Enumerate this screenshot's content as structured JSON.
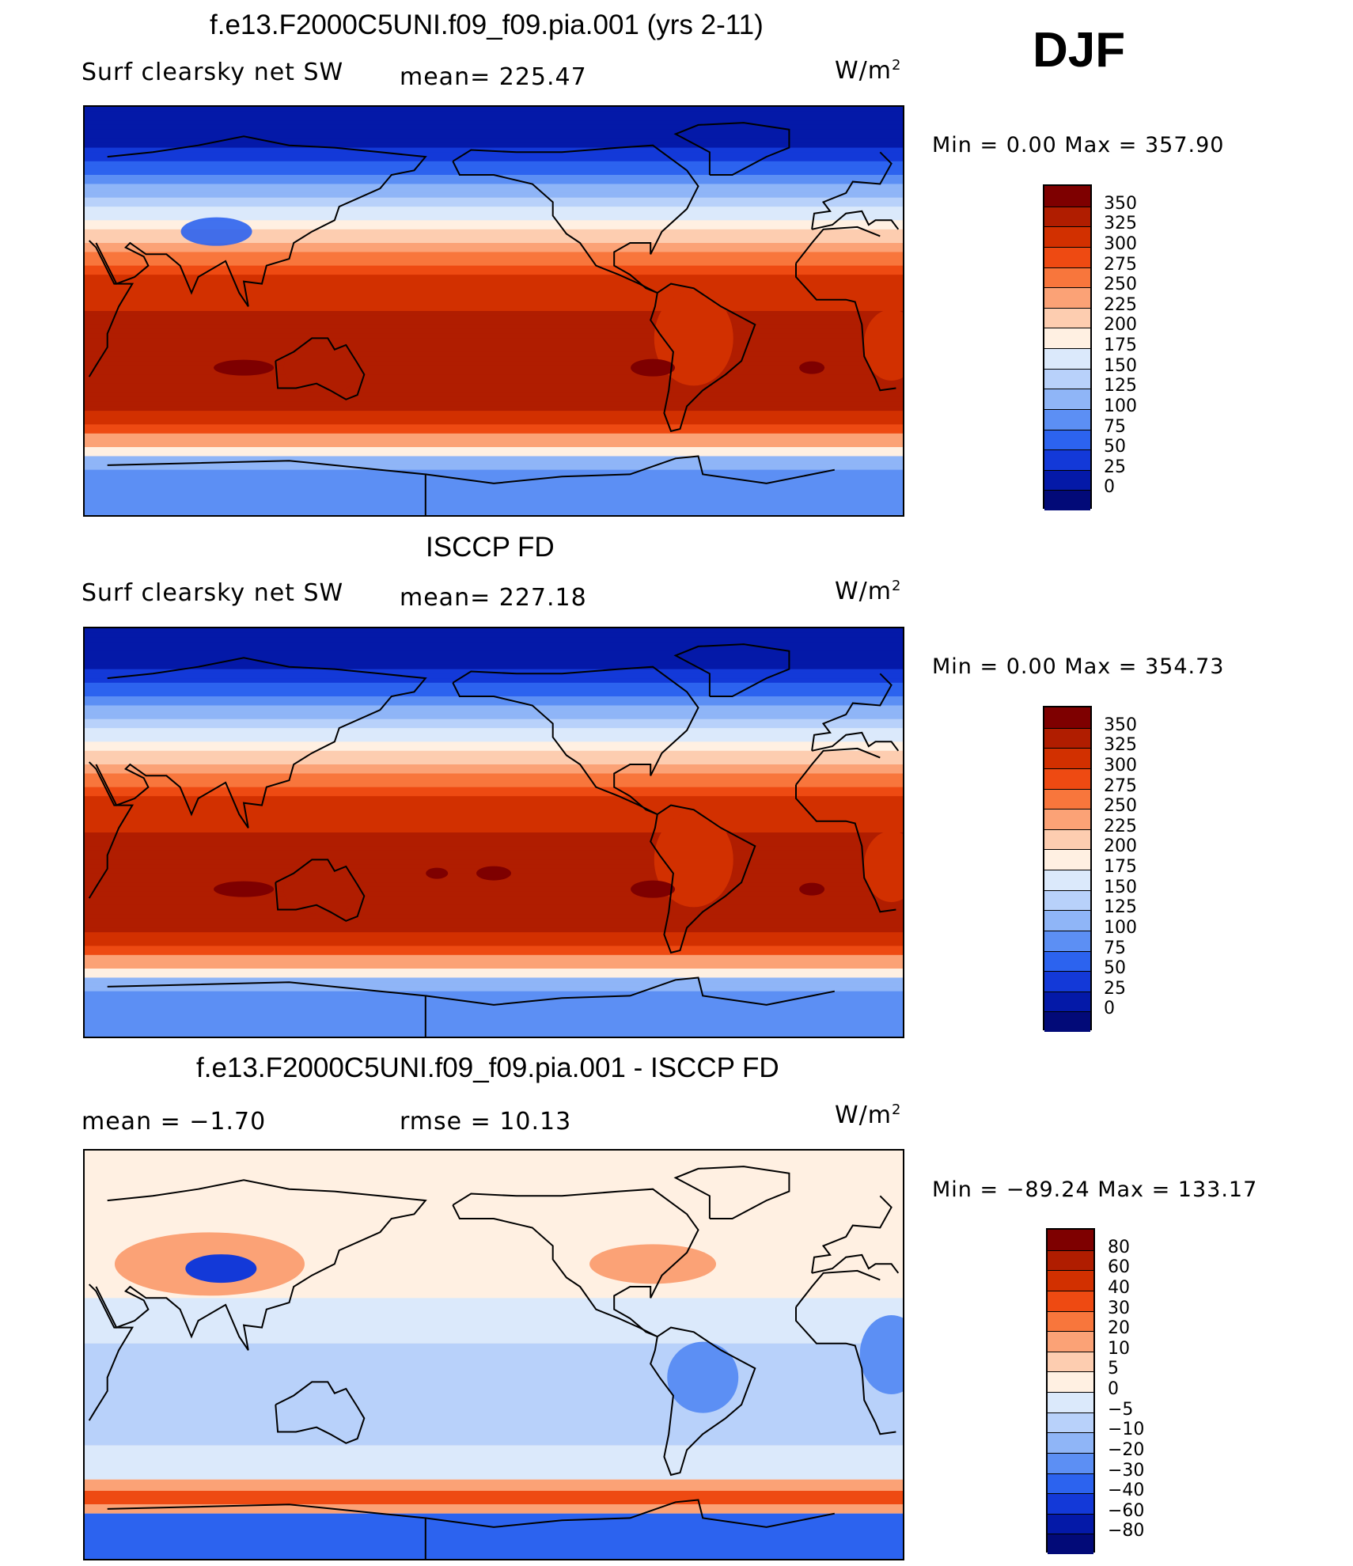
{
  "season": "DJF",
  "units_base": "W/m",
  "units_exp": "2",
  "panels": [
    {
      "title": "f.e13.F2000C5UNI.f09_f09.pia.001 (yrs 2-11)",
      "left_label": "Surf clearsky net SW",
      "mid_label": "mean= 225.47",
      "minmax": "Min =    0.00 Max = 357.90",
      "kind": "model"
    },
    {
      "title": "ISCCP FD",
      "left_label": "Surf clearsky net SW",
      "mid_label": "mean= 227.18",
      "minmax": "Min =    0.00 Max = 354.73",
      "kind": "obs"
    },
    {
      "title": "f.e13.F2000C5UNI.f09_f09.pia.001 - ISCCP FD",
      "left_label": "mean =   −1.70",
      "mid_label": "rmse =   10.13",
      "minmax": "Min = −89.24 Max = 133.17",
      "kind": "diff"
    }
  ],
  "chart_data": [
    {
      "type": "heatmap",
      "title": "f.e13.F2000C5UNI.f09_f09.pia.001 (yrs 2-11)",
      "variable": "Surf clearsky net SW",
      "units": "W/m2",
      "mean": 225.47,
      "min": 0.0,
      "max": 357.9,
      "colorbar_levels": [
        "350",
        "325",
        "300",
        "275",
        "250",
        "225",
        "200",
        "175",
        "150",
        "125",
        "100",
        "75",
        "50",
        "25",
        "0"
      ],
      "colorbar_colors": [
        "#7e0000",
        "#b01d00",
        "#d23000",
        "#ee4a12",
        "#f8763c",
        "#fba276",
        "#fdcdb0",
        "#fff0e2",
        "#dbe9fb",
        "#b8d1fa",
        "#8fb5f7",
        "#5c8ff4",
        "#2c63ef",
        "#1339d8",
        "#0419a8",
        "#020a78"
      ]
    },
    {
      "type": "heatmap",
      "title": "ISCCP FD",
      "variable": "Surf clearsky net SW",
      "units": "W/m2",
      "mean": 227.18,
      "min": 0.0,
      "max": 354.73,
      "colorbar_levels": [
        "350",
        "325",
        "300",
        "275",
        "250",
        "225",
        "200",
        "175",
        "150",
        "125",
        "100",
        "75",
        "50",
        "25",
        "0"
      ],
      "colorbar_colors": [
        "#7e0000",
        "#b01d00",
        "#d23000",
        "#ee4a12",
        "#f8763c",
        "#fba276",
        "#fdcdb0",
        "#fff0e2",
        "#dbe9fb",
        "#b8d1fa",
        "#8fb5f7",
        "#5c8ff4",
        "#2c63ef",
        "#1339d8",
        "#0419a8",
        "#020a78"
      ]
    },
    {
      "type": "heatmap",
      "title": "f.e13.F2000C5UNI.f09_f09.pia.001 - ISCCP FD",
      "units": "W/m2",
      "mean": -1.7,
      "rmse": 10.13,
      "min": -89.24,
      "max": 133.17,
      "colorbar_levels": [
        "80",
        "60",
        "40",
        "30",
        "20",
        "10",
        "5",
        "0",
        "−5",
        "−10",
        "−20",
        "−30",
        "−40",
        "−60",
        "−80"
      ],
      "colorbar_colors": [
        "#7e0000",
        "#b01d00",
        "#d23000",
        "#ee4a12",
        "#f8763c",
        "#fba276",
        "#fdcdb0",
        "#fff0e2",
        "#dbe9fb",
        "#b8d1fa",
        "#8fb5f7",
        "#5c8ff4",
        "#2c63ef",
        "#1339d8",
        "#0419a8",
        "#020a78"
      ]
    }
  ]
}
